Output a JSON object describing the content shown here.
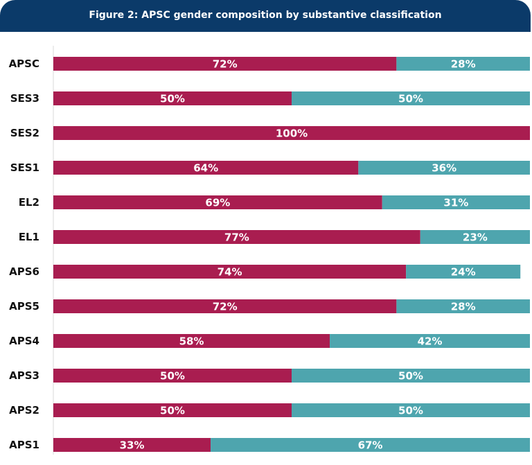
{
  "chart_data": {
    "type": "bar",
    "orientation": "horizontal",
    "stacked": true,
    "title": "Figure 2: APSC gender composition by substantive classification",
    "categories": [
      "APSC",
      "SES3",
      "SES2",
      "SES1",
      "EL2",
      "EL1",
      "APS6",
      "APS5",
      "APS4",
      "APS3",
      "APS2",
      "APS1"
    ],
    "series": [
      {
        "values": [
          72,
          50,
          100,
          64,
          69,
          77,
          74,
          72,
          58,
          50,
          50,
          33
        ],
        "color": "#a91d50"
      },
      {
        "values": [
          28,
          50,
          0,
          36,
          31,
          23,
          24,
          28,
          42,
          50,
          50,
          67
        ],
        "color": "#4ea5ae"
      }
    ],
    "xlim": [
      0,
      100
    ],
    "value_suffix": "%",
    "grid": false,
    "legend": "none"
  }
}
